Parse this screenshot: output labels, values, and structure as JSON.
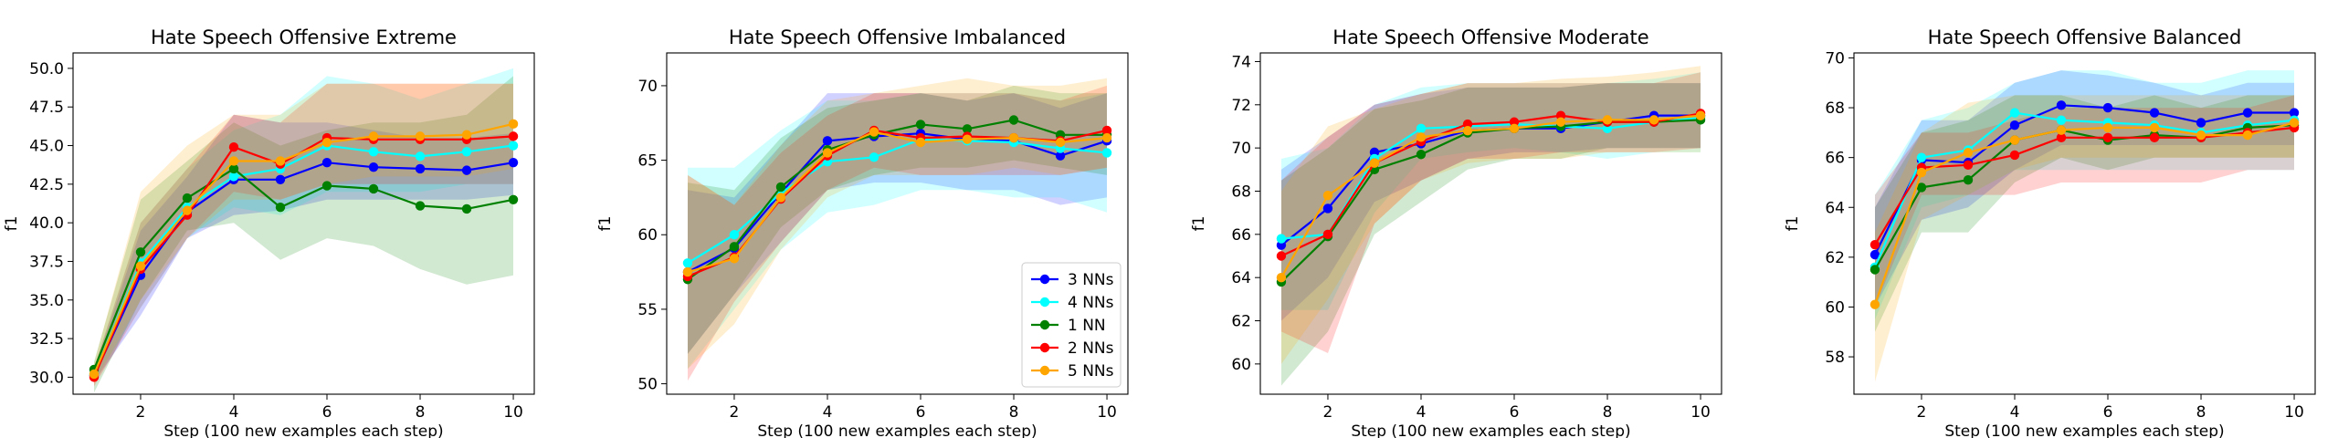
{
  "chart_data": [
    {
      "type": "line",
      "title": "Hate Speech Offensive Extreme",
      "xlabel": "Step (100 new examples each step)",
      "ylabel": "f1",
      "x": [
        1,
        2,
        3,
        4,
        5,
        6,
        7,
        8,
        9,
        10
      ],
      "xlim": [
        0.55,
        10.45
      ],
      "ylim": [
        28.9,
        51.0
      ],
      "xticks": [
        2,
        4,
        6,
        8,
        10
      ],
      "yticks": [
        30.0,
        32.5,
        35.0,
        37.5,
        40.0,
        42.5,
        45.0,
        47.5,
        50.0
      ],
      "ytick_labels": [
        "30.0",
        "32.5",
        "35.0",
        "37.5",
        "40.0",
        "42.5",
        "45.0",
        "47.5",
        "50.0"
      ],
      "legend": false,
      "series": [
        {
          "name": "3 NNs",
          "color": "#0000ff",
          "values": [
            30.1,
            36.6,
            40.7,
            42.8,
            42.8,
            43.9,
            43.6,
            43.5,
            43.4,
            43.9
          ],
          "lower": [
            29.7,
            34.0,
            39.0,
            40.5,
            40.8,
            41.5,
            41.5,
            41.5,
            41.5,
            41.8
          ],
          "upper": [
            30.5,
            39.5,
            43.0,
            47.0,
            46.5,
            46.5,
            46.0,
            45.5,
            45.5,
            45.8
          ]
        },
        {
          "name": "4 NNs",
          "color": "#00ffff",
          "values": [
            30.2,
            37.4,
            41.0,
            43.0,
            43.5,
            45.0,
            44.6,
            44.3,
            44.6,
            45.0
          ],
          "lower": [
            29.8,
            34.5,
            39.0,
            41.0,
            40.5,
            42.0,
            42.0,
            42.0,
            42.5,
            42.5
          ],
          "upper": [
            30.6,
            40.0,
            43.5,
            46.0,
            47.0,
            49.5,
            49.0,
            48.0,
            49.0,
            50.0
          ]
        },
        {
          "name": "1 NN",
          "color": "#008000",
          "values": [
            30.5,
            38.1,
            41.6,
            43.5,
            41.0,
            42.4,
            42.2,
            41.1,
            40.9,
            41.5
          ],
          "lower": [
            29.0,
            35.0,
            39.5,
            40.0,
            37.6,
            39.0,
            38.5,
            37.0,
            36.0,
            36.6
          ],
          "upper": [
            31.0,
            41.5,
            44.0,
            46.5,
            45.0,
            46.0,
            46.5,
            46.5,
            47.0,
            49.5
          ]
        },
        {
          "name": "2 NNs",
          "color": "#ff0000",
          "values": [
            30.0,
            37.0,
            40.5,
            44.9,
            43.8,
            45.5,
            45.4,
            45.4,
            45.4,
            45.6
          ],
          "lower": [
            29.4,
            34.5,
            39.0,
            42.0,
            41.5,
            42.5,
            42.5,
            42.5,
            42.5,
            42.5
          ],
          "upper": [
            30.6,
            40.0,
            43.5,
            47.0,
            46.5,
            49.0,
            49.0,
            49.0,
            49.0,
            49.0
          ]
        },
        {
          "name": "5 NNs",
          "color": "#ffa500",
          "values": [
            30.2,
            37.2,
            40.8,
            44.0,
            44.0,
            45.2,
            45.6,
            45.6,
            45.7,
            46.4
          ],
          "lower": [
            29.5,
            35.0,
            39.0,
            41.5,
            41.5,
            42.5,
            43.0,
            43.0,
            43.0,
            43.5
          ],
          "upper": [
            30.9,
            42.0,
            45.0,
            47.0,
            47.0,
            49.0,
            49.0,
            49.0,
            49.0,
            49.0
          ]
        }
      ]
    },
    {
      "type": "line",
      "title": "Hate Speech Offensive Imbalanced",
      "xlabel": "Step (100 new examples each step)",
      "ylabel": "f1",
      "x": [
        1,
        2,
        3,
        4,
        5,
        6,
        7,
        8,
        9,
        10
      ],
      "xlim": [
        0.55,
        10.45
      ],
      "ylim": [
        49.3,
        72.2
      ],
      "xticks": [
        2,
        4,
        6,
        8,
        10
      ],
      "yticks": [
        50,
        55,
        60,
        65,
        70
      ],
      "ytick_labels": [
        "50",
        "55",
        "60",
        "65",
        "70"
      ],
      "legend": true,
      "series": [
        {
          "name": "3 NNs",
          "color": "#0000ff",
          "values": [
            57.5,
            59.1,
            62.8,
            66.3,
            66.6,
            66.8,
            66.4,
            66.3,
            65.3,
            66.3
          ],
          "lower": [
            52.0,
            56.0,
            59.5,
            63.0,
            63.5,
            63.5,
            63.0,
            63.0,
            62.0,
            62.5
          ],
          "upper": [
            63.0,
            62.5,
            66.0,
            69.5,
            69.5,
            69.5,
            69.0,
            69.5,
            68.5,
            69.5
          ]
        },
        {
          "name": "4 NNs",
          "color": "#00ffff",
          "values": [
            58.1,
            60.0,
            62.8,
            64.9,
            65.2,
            66.4,
            66.3,
            66.2,
            65.8,
            65.5
          ],
          "lower": [
            51.0,
            55.0,
            59.0,
            61.5,
            62.0,
            63.0,
            63.0,
            62.5,
            62.5,
            61.5
          ],
          "upper": [
            64.5,
            64.5,
            67.0,
            69.0,
            69.0,
            69.5,
            69.5,
            69.5,
            69.0,
            69.5
          ]
        },
        {
          "name": "1 NN",
          "color": "#008000",
          "values": [
            57.0,
            59.2,
            63.2,
            65.7,
            66.7,
            67.4,
            67.1,
            67.7,
            66.7,
            66.7
          ],
          "lower": [
            52.0,
            56.0,
            60.5,
            63.0,
            64.0,
            64.5,
            64.5,
            65.0,
            64.5,
            64.0
          ],
          "upper": [
            63.5,
            63.0,
            66.5,
            68.5,
            69.0,
            69.5,
            69.0,
            70.0,
            69.5,
            69.5
          ]
        },
        {
          "name": "2 NNs",
          "color": "#ff0000",
          "values": [
            57.2,
            58.5,
            62.4,
            65.3,
            67.0,
            66.5,
            66.6,
            66.5,
            66.3,
            67.0
          ],
          "lower": [
            50.2,
            55.5,
            59.5,
            63.0,
            64.5,
            64.0,
            64.0,
            64.0,
            64.0,
            64.5
          ],
          "upper": [
            64.0,
            62.0,
            65.5,
            68.0,
            69.5,
            69.5,
            69.5,
            69.5,
            69.0,
            70.0
          ]
        },
        {
          "name": "5 NNs",
          "color": "#ffa500",
          "values": [
            57.5,
            58.4,
            62.5,
            65.5,
            66.9,
            66.2,
            66.4,
            66.5,
            66.2,
            66.5
          ],
          "lower": [
            51.0,
            54.0,
            59.0,
            62.5,
            64.0,
            64.0,
            64.0,
            64.5,
            64.0,
            64.5
          ],
          "upper": [
            64.0,
            62.0,
            66.0,
            69.0,
            69.5,
            70.0,
            70.5,
            70.0,
            70.0,
            70.5
          ]
        }
      ]
    },
    {
      "type": "line",
      "title": "Hate Speech Offensive Moderate",
      "xlabel": "Step (100 new examples each step)",
      "ylabel": "f1",
      "x": [
        1,
        2,
        3,
        4,
        5,
        6,
        7,
        8,
        9,
        10
      ],
      "xlim": [
        0.55,
        10.45
      ],
      "ylim": [
        58.6,
        74.4
      ],
      "xticks": [
        2,
        4,
        6,
        8,
        10
      ],
      "yticks": [
        60,
        62,
        64,
        66,
        68,
        70,
        72,
        74
      ],
      "ytick_labels": [
        "60",
        "62",
        "64",
        "66",
        "68",
        "70",
        "72",
        "74"
      ],
      "legend": false,
      "series": [
        {
          "name": "3 NNs",
          "color": "#0000ff",
          "values": [
            65.5,
            67.2,
            69.8,
            70.2,
            70.8,
            70.9,
            70.9,
            71.2,
            71.5,
            71.5
          ],
          "lower": [
            62.0,
            64.0,
            67.5,
            68.5,
            69.5,
            69.8,
            69.8,
            70.0,
            70.0,
            70.0
          ],
          "upper": [
            69.0,
            70.5,
            72.0,
            72.5,
            72.8,
            72.8,
            72.8,
            73.0,
            73.0,
            73.0
          ]
        },
        {
          "name": "4 NNs",
          "color": "#00ffff",
          "values": [
            65.8,
            66.0,
            69.5,
            70.9,
            71.0,
            71.1,
            71.0,
            70.9,
            71.2,
            71.4
          ],
          "lower": [
            62.5,
            62.5,
            67.0,
            69.5,
            69.8,
            70.0,
            69.8,
            69.5,
            69.8,
            69.8
          ],
          "upper": [
            69.5,
            70.0,
            72.0,
            72.8,
            73.0,
            73.0,
            73.0,
            73.0,
            73.2,
            73.5
          ]
        },
        {
          "name": "1 NN",
          "color": "#008000",
          "values": [
            63.8,
            65.9,
            69.0,
            69.7,
            70.7,
            70.9,
            71.0,
            71.2,
            71.2,
            71.3
          ],
          "lower": [
            59.0,
            61.5,
            66.0,
            67.5,
            69.0,
            69.5,
            69.5,
            70.0,
            70.0,
            70.0
          ],
          "upper": [
            68.5,
            70.0,
            71.8,
            72.2,
            72.8,
            72.8,
            72.8,
            73.0,
            73.0,
            73.0
          ]
        },
        {
          "name": "2 NNs",
          "color": "#ff0000",
          "values": [
            65.0,
            66.0,
            69.3,
            70.3,
            71.1,
            71.2,
            71.5,
            71.2,
            71.2,
            71.6
          ],
          "lower": [
            61.5,
            60.5,
            66.5,
            68.5,
            69.5,
            69.5,
            69.8,
            69.8,
            69.8,
            70.0
          ],
          "upper": [
            68.5,
            70.5,
            72.0,
            72.5,
            73.0,
            73.0,
            73.0,
            73.0,
            73.0,
            73.5
          ]
        },
        {
          "name": "5 NNs",
          "color": "#ffa500",
          "values": [
            64.0,
            67.8,
            69.3,
            70.5,
            70.8,
            70.9,
            71.2,
            71.3,
            71.3,
            71.5
          ],
          "lower": [
            60.0,
            63.0,
            66.5,
            68.5,
            69.3,
            69.5,
            69.5,
            69.8,
            69.8,
            69.8
          ],
          "upper": [
            68.0,
            71.0,
            71.8,
            72.5,
            73.0,
            73.0,
            73.2,
            73.3,
            73.5,
            73.8
          ]
        }
      ]
    },
    {
      "type": "line",
      "title": "Hate Speech Offensive Balanced",
      "xlabel": "Step (100 new examples each step)",
      "ylabel": "f1",
      "x": [
        1,
        2,
        3,
        4,
        5,
        6,
        7,
        8,
        9,
        10
      ],
      "xlim": [
        0.55,
        10.45
      ],
      "ylim": [
        56.5,
        70.2
      ],
      "xticks": [
        2,
        4,
        6,
        8,
        10
      ],
      "yticks": [
        58,
        60,
        62,
        64,
        66,
        68,
        70
      ],
      "ytick_labels": [
        "58",
        "60",
        "62",
        "64",
        "66",
        "68",
        "70"
      ],
      "legend": false,
      "series": [
        {
          "name": "3 NNs",
          "color": "#0000ff",
          "values": [
            62.1,
            65.9,
            65.8,
            67.3,
            68.1,
            68.0,
            67.8,
            67.4,
            67.8,
            67.8
          ],
          "lower": [
            60.0,
            63.5,
            64.0,
            65.5,
            66.5,
            66.5,
            66.5,
            66.5,
            66.5,
            66.5
          ],
          "upper": [
            64.0,
            67.5,
            67.5,
            69.0,
            69.5,
            69.3,
            69.0,
            68.5,
            69.0,
            69.0
          ]
        },
        {
          "name": "4 NNs",
          "color": "#00ffff",
          "values": [
            61.6,
            66.0,
            66.3,
            67.8,
            67.5,
            67.4,
            67.3,
            67.0,
            67.3,
            67.5
          ],
          "lower": [
            59.5,
            64.0,
            64.5,
            65.5,
            65.5,
            65.5,
            65.5,
            65.5,
            65.5,
            65.5
          ],
          "upper": [
            64.5,
            67.5,
            68.0,
            69.0,
            69.5,
            69.5,
            69.0,
            69.0,
            69.5,
            69.5
          ]
        },
        {
          "name": "1 NN",
          "color": "#008000",
          "values": [
            61.5,
            64.8,
            65.1,
            66.7,
            67.1,
            66.7,
            66.9,
            66.8,
            67.2,
            67.3
          ],
          "lower": [
            59.0,
            63.0,
            63.0,
            65.0,
            66.0,
            65.5,
            66.0,
            66.0,
            66.0,
            66.0
          ],
          "upper": [
            64.0,
            67.0,
            67.5,
            68.5,
            68.5,
            68.0,
            68.5,
            68.0,
            68.5,
            68.5
          ]
        },
        {
          "name": "2 NNs",
          "color": "#ff0000",
          "values": [
            62.5,
            65.6,
            65.7,
            66.1,
            66.8,
            66.8,
            66.8,
            66.8,
            67.0,
            67.2
          ],
          "lower": [
            60.0,
            64.5,
            64.5,
            64.5,
            65.0,
            65.0,
            65.0,
            65.0,
            65.5,
            65.5
          ],
          "upper": [
            64.5,
            67.0,
            67.0,
            67.5,
            68.0,
            68.0,
            68.0,
            68.0,
            68.0,
            68.5
          ]
        },
        {
          "name": "5 NNs",
          "color": "#ffa500",
          "values": [
            60.1,
            65.4,
            66.2,
            66.7,
            67.1,
            67.2,
            67.2,
            66.9,
            66.9,
            67.4
          ],
          "lower": [
            57.0,
            63.5,
            64.5,
            65.5,
            66.0,
            66.0,
            66.0,
            66.0,
            66.0,
            66.0
          ],
          "upper": [
            63.0,
            67.0,
            68.2,
            68.5,
            68.5,
            68.5,
            68.5,
            68.5,
            68.5,
            68.5
          ]
        }
      ]
    }
  ]
}
